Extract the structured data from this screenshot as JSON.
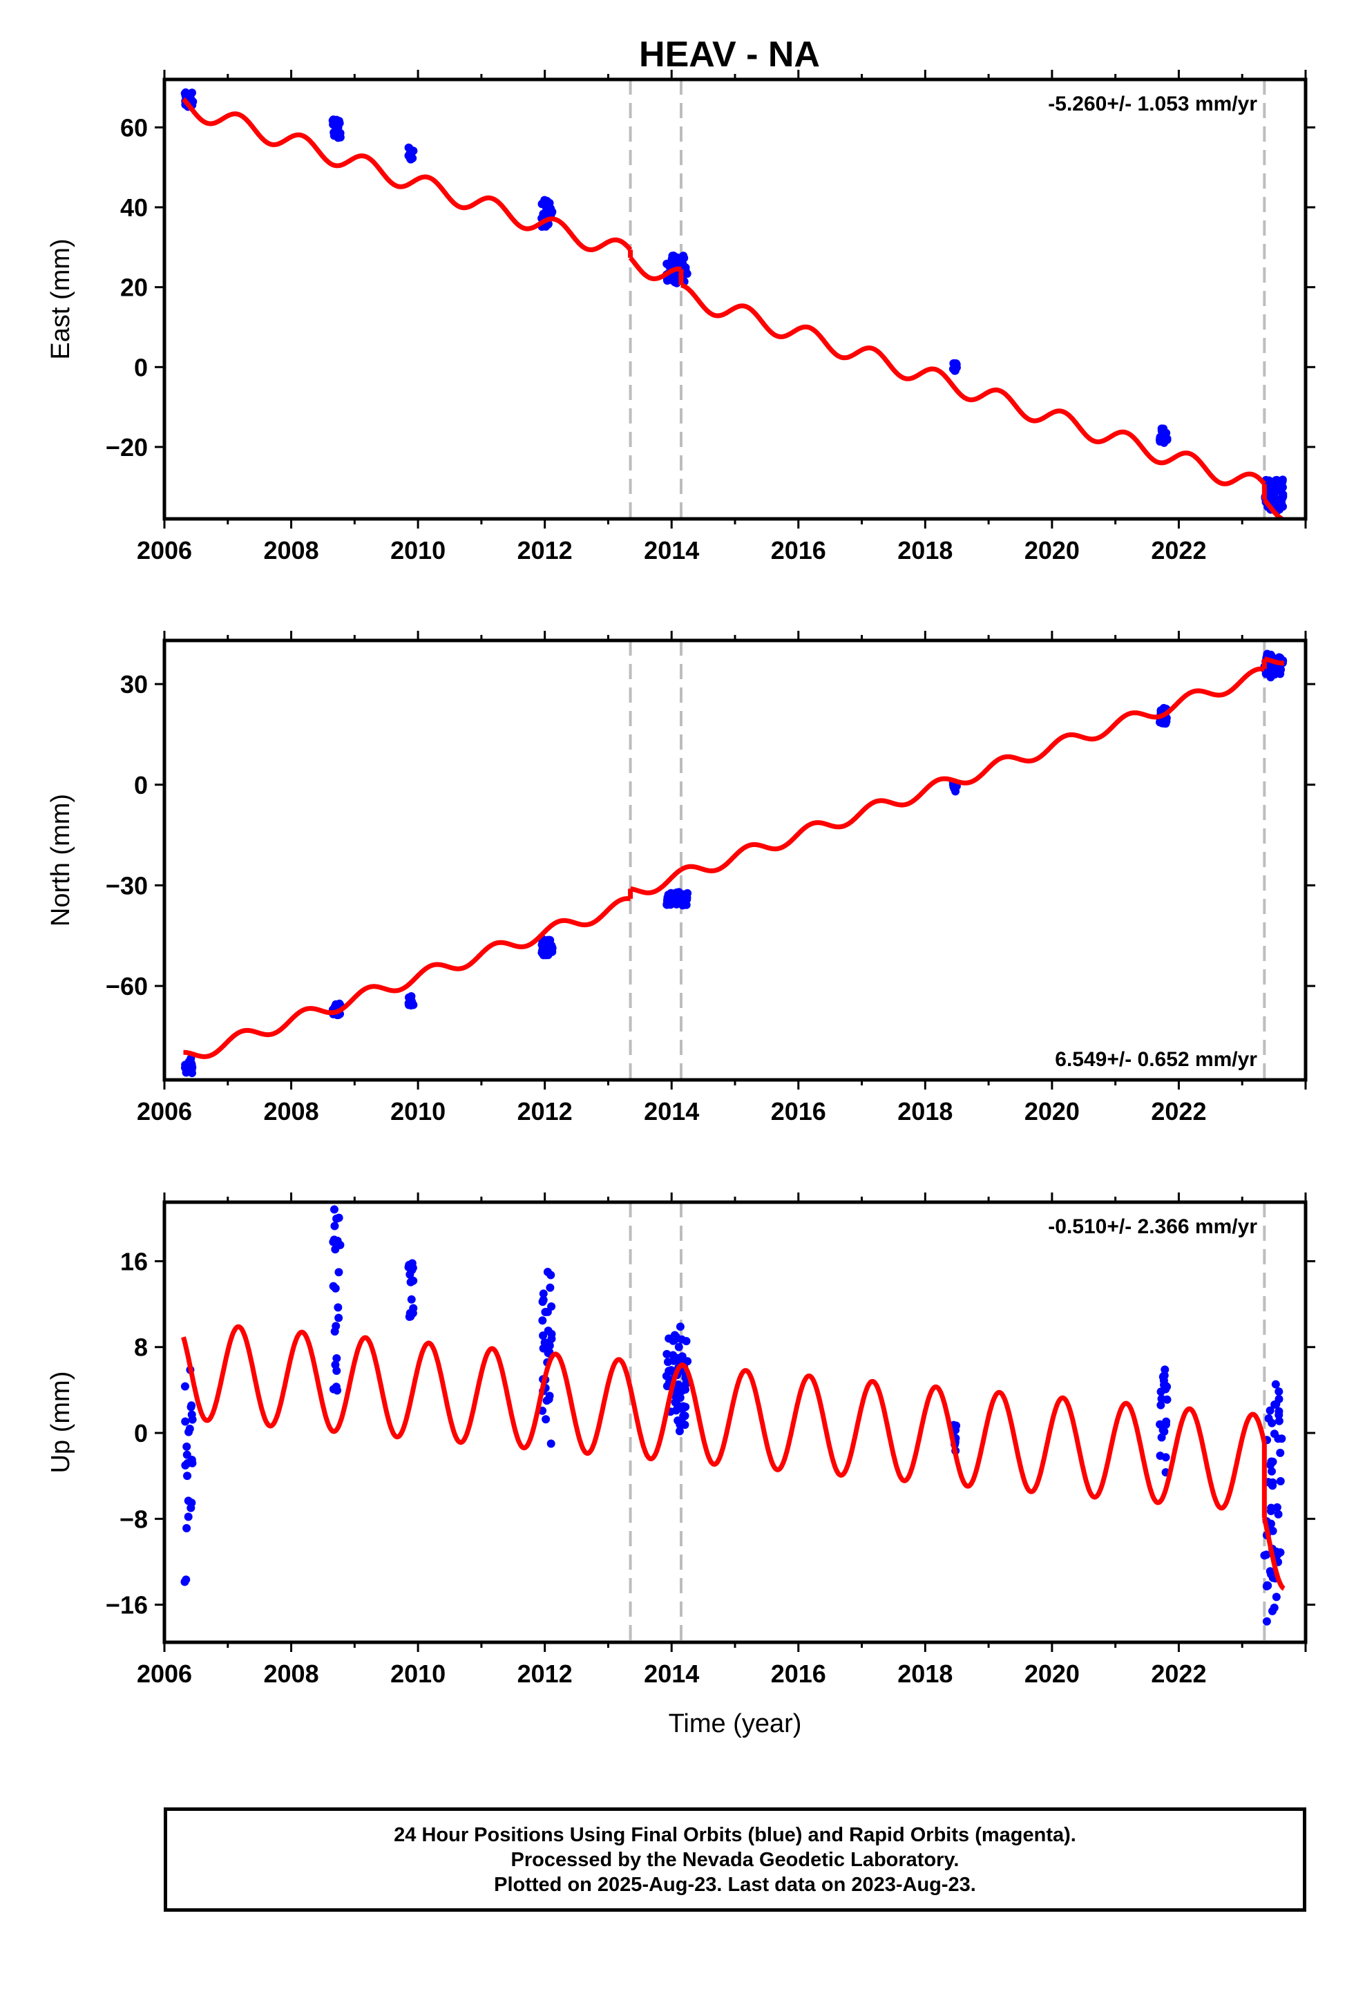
{
  "title": "HEAV - NA",
  "colors": {
    "model": "#ff0000",
    "data": "#0000ff",
    "steps": "#bdbdbd",
    "frame": "#000000"
  },
  "chart_data": [
    {
      "type": "scatter",
      "name": "east",
      "ylabel": "East (mm)",
      "xlabel": "",
      "xlim": [
        2006.0,
        2024.0
      ],
      "ylim": [
        -38,
        72
      ],
      "xticks": [
        "2006",
        "2008",
        "2010",
        "2012",
        "2014",
        "2016",
        "2018",
        "2020",
        "2022"
      ],
      "yticks": [
        "60",
        "40",
        "20",
        "0",
        "−20"
      ],
      "ytick_values": [
        60,
        40,
        20,
        0,
        -20
      ],
      "rate_label": "-5.260+/- 1.053 mm/yr",
      "rate_position": "top-right",
      "steps": [
        2013.35,
        2014.15,
        2023.35
      ],
      "model": {
        "rate": -5.26,
        "intercept_at_2006": 67.0,
        "annual_amp": 2.4,
        "phase": 0.5,
        "offsets": [
          [
            2013.35,
            -2.0
          ],
          [
            2014.15,
            -4.0
          ],
          [
            2023.35,
            -4.0
          ]
        ]
      },
      "observations": [
        {
          "from": 2006.32,
          "to": 2006.45,
          "ymin": 65,
          "ymax": 69
        },
        {
          "from": 2008.65,
          "to": 2008.78,
          "ymin": 57,
          "ymax": 62
        },
        {
          "from": 2009.85,
          "to": 2009.93,
          "ymin": 52,
          "ymax": 55
        },
        {
          "from": 2011.95,
          "to": 2012.12,
          "ymin": 35,
          "ymax": 42
        },
        {
          "from": 2013.92,
          "to": 2014.25,
          "ymin": 21,
          "ymax": 28
        },
        {
          "from": 2018.44,
          "to": 2018.5,
          "ymin": -1,
          "ymax": 1
        },
        {
          "from": 2021.7,
          "to": 2021.82,
          "ymin": -19,
          "ymax": -15
        },
        {
          "from": 2023.35,
          "to": 2023.65,
          "ymin": -36,
          "ymax": -28
        }
      ]
    },
    {
      "type": "scatter",
      "name": "north",
      "ylabel": "North (mm)",
      "xlabel": "",
      "xlim": [
        2006.0,
        2024.0
      ],
      "ylim": [
        -88,
        43
      ],
      "xticks": [
        "2006",
        "2008",
        "2010",
        "2012",
        "2014",
        "2016",
        "2018",
        "2020",
        "2022"
      ],
      "yticks": [
        "30",
        "0",
        "−30",
        "−60"
      ],
      "ytick_values": [
        30,
        0,
        -30,
        -60
      ],
      "rate_label": "6.549+/- 0.652 mm/yr",
      "rate_position": "bottom-right",
      "steps": [
        2013.35,
        2014.15,
        2023.35
      ],
      "model": {
        "rate": 6.549,
        "intercept_at_2006": -83.5,
        "annual_amp": 2.0,
        "phase": 0.2,
        "offsets": [
          [
            2013.35,
            3.0
          ],
          [
            2014.15,
            0.0
          ],
          [
            2023.35,
            3.0
          ]
        ]
      },
      "observations": [
        {
          "from": 2006.32,
          "to": 2006.45,
          "ymin": -86,
          "ymax": -81
        },
        {
          "from": 2008.65,
          "to": 2008.78,
          "ymin": -69,
          "ymax": -65
        },
        {
          "from": 2009.85,
          "to": 2009.93,
          "ymin": -66,
          "ymax": -63
        },
        {
          "from": 2011.95,
          "to": 2012.12,
          "ymin": -51,
          "ymax": -46
        },
        {
          "from": 2013.92,
          "to": 2014.25,
          "ymin": -36,
          "ymax": -32
        },
        {
          "from": 2018.44,
          "to": 2018.5,
          "ymin": -2,
          "ymax": 3
        },
        {
          "from": 2021.7,
          "to": 2021.82,
          "ymin": 18,
          "ymax": 23
        },
        {
          "from": 2023.35,
          "to": 2023.65,
          "ymin": 32,
          "ymax": 39
        }
      ]
    },
    {
      "type": "scatter",
      "name": "up",
      "ylabel": "Up (mm)",
      "xlabel": "Time (year)",
      "xlim": [
        2006.0,
        2024.0
      ],
      "ylim": [
        -19.5,
        21.5
      ],
      "xticks": [
        "2006",
        "2008",
        "2010",
        "2012",
        "2014",
        "2016",
        "2018",
        "2020",
        "2022"
      ],
      "yticks": [
        "16",
        "8",
        "0",
        "−8",
        "−16"
      ],
      "ytick_values": [
        16,
        8,
        0,
        -8,
        -16
      ],
      "rate_label": "-0.510+/- 2.366 mm/yr",
      "rate_position": "top-right",
      "steps": [
        2013.35,
        2014.15,
        2023.35
      ],
      "model": {
        "rate": -0.51,
        "intercept_at_2006": 6.0,
        "annual_amp": 4.5,
        "phase": 0.5,
        "offsets": [
          [
            2023.35,
            -7.0
          ]
        ]
      },
      "observations": [
        {
          "from": 2006.32,
          "to": 2006.45,
          "ymin": -15,
          "ymax": 6
        },
        {
          "from": 2008.65,
          "to": 2008.78,
          "ymin": 3,
          "ymax": 21
        },
        {
          "from": 2009.85,
          "to": 2009.93,
          "ymin": 10,
          "ymax": 16
        },
        {
          "from": 2011.95,
          "to": 2012.12,
          "ymin": -1,
          "ymax": 15
        },
        {
          "from": 2013.92,
          "to": 2014.25,
          "ymin": 0,
          "ymax": 10
        },
        {
          "from": 2018.44,
          "to": 2018.5,
          "ymin": -2,
          "ymax": 1
        },
        {
          "from": 2021.7,
          "to": 2021.82,
          "ymin": -4,
          "ymax": 6
        },
        {
          "from": 2023.35,
          "to": 2023.65,
          "ymin": -18,
          "ymax": 5
        }
      ]
    }
  ],
  "caption": {
    "line1": "24 Hour Positions Using Final Orbits (blue) and Rapid Orbits (magenta).",
    "line2": "Processed by the Nevada Geodetic Laboratory.",
    "line3": "Plotted on 2025-Aug-23. Last data on 2023-Aug-23."
  }
}
